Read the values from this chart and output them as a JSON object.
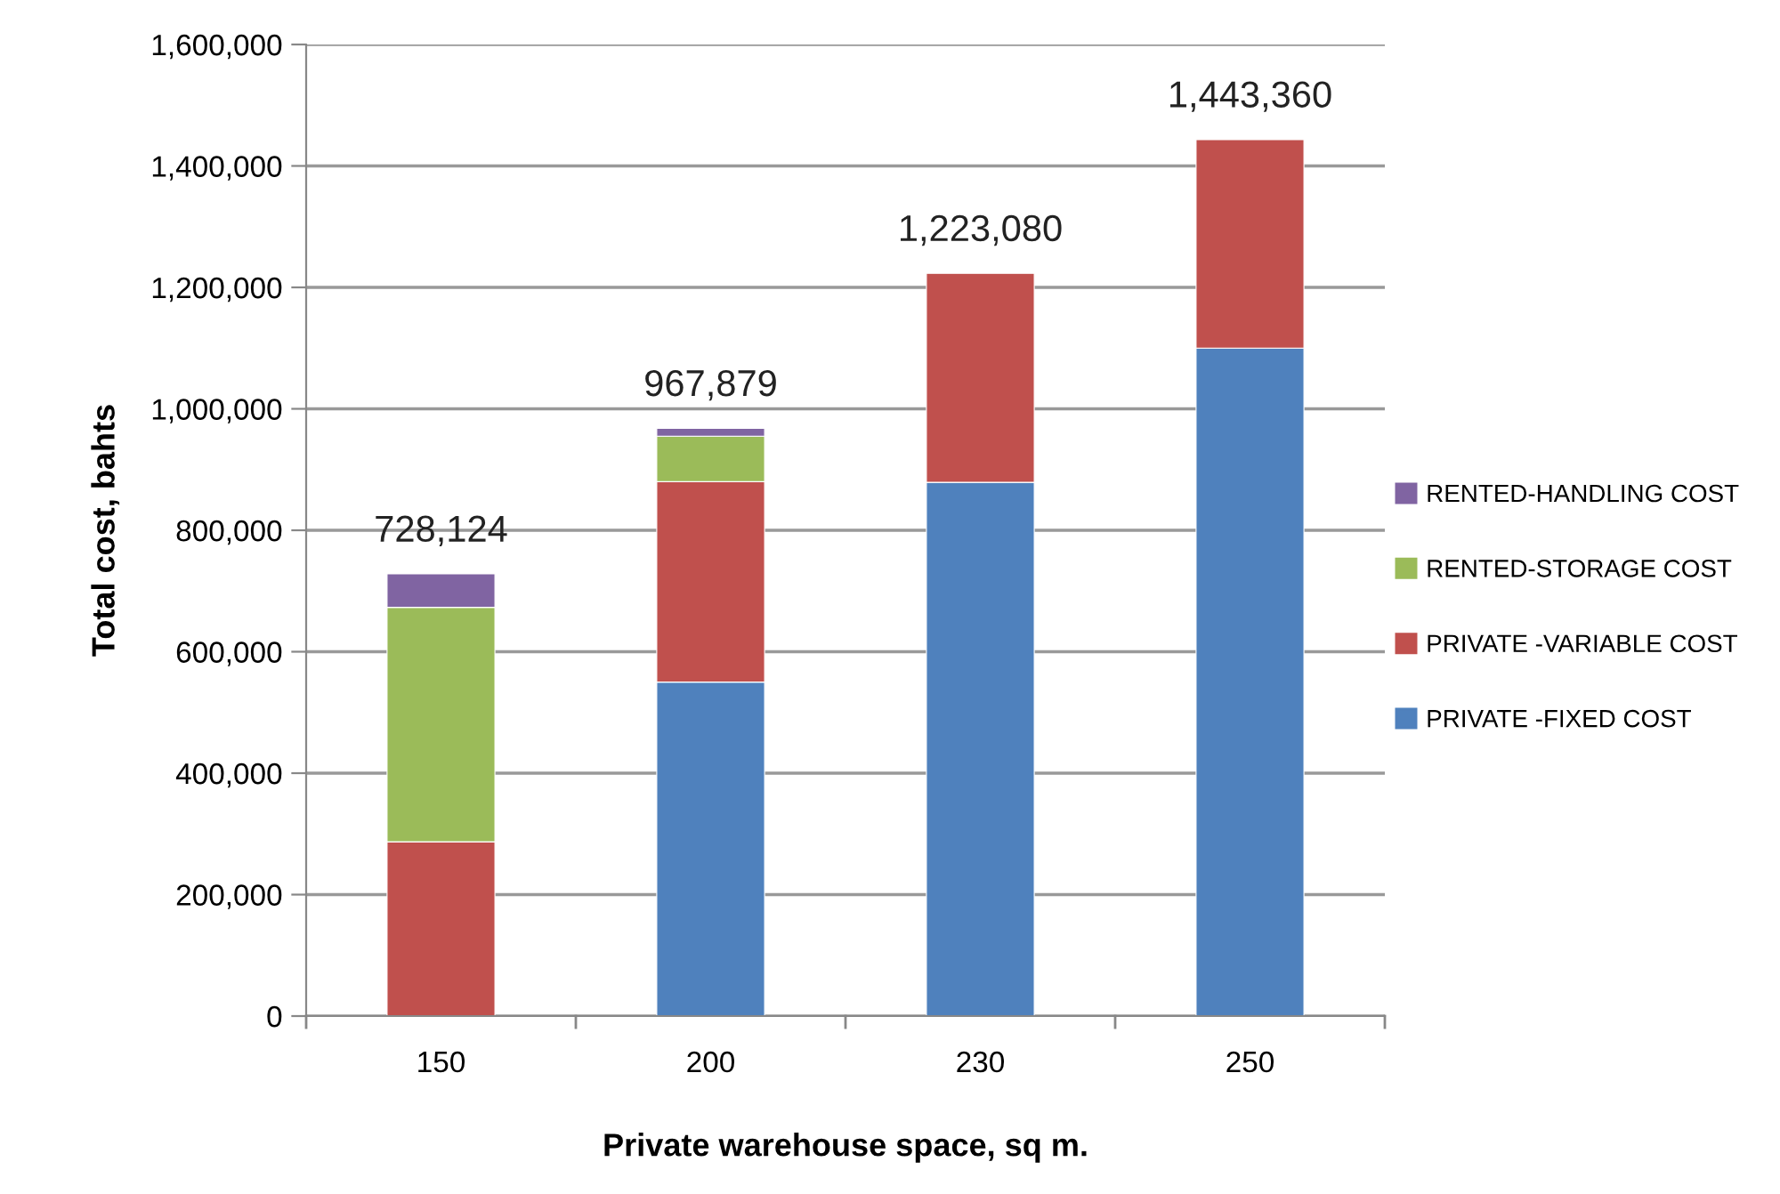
{
  "chart_data": {
    "type": "bar",
    "stacked": true,
    "xlabel": "Private warehouse space, sq m.",
    "ylabel": "Total cost, bahts",
    "categories": [
      "150",
      "200",
      "230",
      "250"
    ],
    "series": [
      {
        "name": "PRIVATE -FIXED COST",
        "color": "#4f81bd",
        "values": [
          null,
          550000,
          879000,
          1100000
        ]
      },
      {
        "name": "PRIVATE -VARIABLE COST",
        "color": "#c0504d",
        "values": [
          287000,
          330000,
          344080,
          343360
        ]
      },
      {
        "name": "RENTED-STORAGE COST",
        "color": "#9bbb59",
        "values": [
          386000,
          75000,
          null,
          null
        ]
      },
      {
        "name": "RENTED-HANDLING COST",
        "color": "#8064a2",
        "values": [
          55124,
          12879,
          null,
          null
        ]
      }
    ],
    "totals": [
      "728,124",
      "967,879",
      "1,223,080",
      "1,443,360"
    ],
    "ylim": [
      0,
      1600000
    ],
    "yticks": [
      {
        "value": 0,
        "label": "0"
      },
      {
        "value": 200000,
        "label": "200,000"
      },
      {
        "value": 400000,
        "label": "400,000"
      },
      {
        "value": 600000,
        "label": "600,000"
      },
      {
        "value": 800000,
        "label": "800,000"
      },
      {
        "value": 1000000,
        "label": "1,000,000"
      },
      {
        "value": 1200000,
        "label": "1,200,000"
      },
      {
        "value": 1400000,
        "label": "1,400,000"
      },
      {
        "value": 1600000,
        "label": "1,600,000"
      }
    ],
    "grid": "y",
    "legend": "right"
  }
}
